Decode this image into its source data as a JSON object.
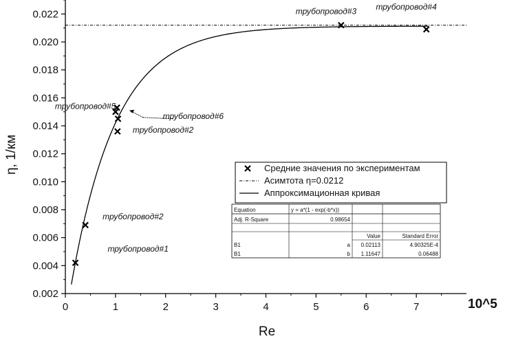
{
  "chart_data": {
    "type": "scatter",
    "xlabel": "Re",
    "ylabel": "η, 1/км",
    "x_multiplier": "10^5",
    "xlim": [
      0,
      8
    ],
    "ylim": [
      0.002,
      0.023
    ],
    "x_ticks": [
      "0",
      "1",
      "2",
      "3",
      "4",
      "5",
      "6",
      "7"
    ],
    "y_ticks": [
      "0.002",
      "0.004",
      "0.006",
      "0.008",
      "0.010",
      "0.012",
      "0.014",
      "0.016",
      "0.018",
      "0.020",
      "0.022"
    ],
    "series": [
      {
        "name": "Средние значения по экспериментам",
        "kind": "markers",
        "marker": "x",
        "points": [
          {
            "x": 0.2,
            "y": 0.0042
          },
          {
            "x": 0.4,
            "y": 0.0069
          },
          {
            "x": 1.0,
            "y": 0.015
          },
          {
            "x": 1.03,
            "y": 0.0153
          },
          {
            "x": 1.05,
            "y": 0.0145
          },
          {
            "x": 1.04,
            "y": 0.0136
          },
          {
            "x": 5.5,
            "y": 0.0212
          },
          {
            "x": 7.2,
            "y": 0.0209
          }
        ]
      },
      {
        "name": "Асимтота η=0.0212",
        "kind": "hline",
        "style": "dash-dot",
        "y": 0.0212
      },
      {
        "name": "Аппроксимационная кривая",
        "kind": "curve",
        "style": "solid",
        "equation": "y = a*(1 - exp(-b*x))",
        "a": 0.02113,
        "b": 1.11647
      }
    ],
    "annotations": [
      {
        "text": "трубопровод#3",
        "x": 5.2,
        "y": 0.022
      },
      {
        "text": "трубопровод#4",
        "x": 6.8,
        "y": 0.0223
      },
      {
        "text": "трубопровод#5",
        "x": 0.4,
        "y": 0.0152
      },
      {
        "text": "трубопровод#6",
        "x": 2.55,
        "y": 0.0145
      },
      {
        "text": "трубопровод#2",
        "x": 1.95,
        "y": 0.0135
      },
      {
        "text": "трубопровод#2",
        "x": 1.35,
        "y": 0.0073
      },
      {
        "text": "трубопровод#1",
        "x": 1.45,
        "y": 0.005
      }
    ],
    "legend_placement": "lower-right",
    "fit_table": {
      "rows": [
        [
          "Equation",
          "y = a*(1 - exp(-b*x))",
          "",
          ""
        ],
        [
          "Adj. R-Square",
          "0.98654",
          "",
          ""
        ],
        [
          "",
          "",
          "Value",
          "Standard Error"
        ],
        [
          "B1",
          "a",
          "0.02113",
          "4.90325E-4"
        ],
        [
          "B1",
          "b",
          "1.11647",
          "0.06488"
        ]
      ]
    },
    "grid": false
  }
}
